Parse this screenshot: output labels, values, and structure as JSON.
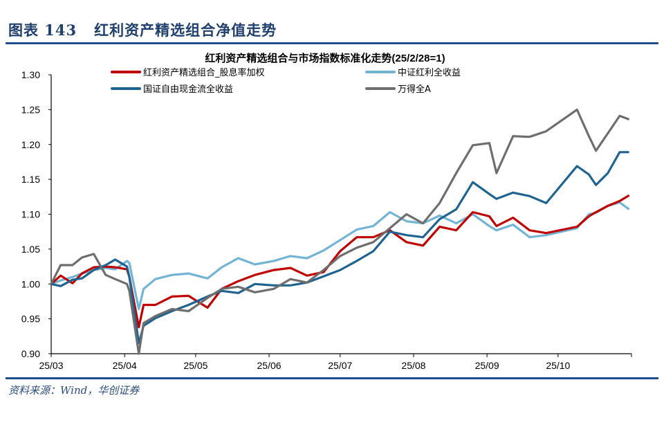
{
  "figure": {
    "title": "图表 143   红利资产精选组合净值走势",
    "source": "资料来源：Wind，华创证券"
  },
  "chart_data": {
    "type": "line",
    "title": "红利资产精选组合与市场指数标准化走势(25/2/28=1)",
    "xlabel": "",
    "ylabel": "",
    "xlim": [
      "2025-03-01",
      "2025-11-01"
    ],
    "ylim": [
      0.9,
      1.3
    ],
    "yticks": [
      "0.90",
      "0.95",
      "1.00",
      "1.05",
      "1.10",
      "1.15",
      "1.20",
      "1.25",
      "1.30"
    ],
    "xticks": [
      {
        "date": "2025-03-01",
        "label": "25/03"
      },
      {
        "date": "2025-04-01",
        "label": "25/04"
      },
      {
        "date": "2025-05-01",
        "label": "25/05"
      },
      {
        "date": "2025-06-01",
        "label": "25/06"
      },
      {
        "date": "2025-07-01",
        "label": "25/07"
      },
      {
        "date": "2025-08-01",
        "label": "25/08"
      },
      {
        "date": "2025-09-01",
        "label": "25/09"
      },
      {
        "date": "2025-10-01",
        "label": "25/10"
      },
      {
        "date": "2025-11-01",
        "label": ""
      }
    ],
    "grid": false,
    "legend_position": "top",
    "x": [
      "2025-03-01",
      "2025-03-05",
      "2025-03-10",
      "2025-03-14",
      "2025-03-19",
      "2025-03-24",
      "2025-03-28",
      "2025-04-02",
      "2025-04-03",
      "2025-04-07",
      "2025-04-09",
      "2025-04-14",
      "2025-04-21",
      "2025-04-28",
      "2025-05-06",
      "2025-05-12",
      "2025-05-19",
      "2025-05-26",
      "2025-06-03",
      "2025-06-10",
      "2025-06-17",
      "2025-06-24",
      "2025-07-01",
      "2025-07-08",
      "2025-07-15",
      "2025-07-22",
      "2025-07-29",
      "2025-08-05",
      "2025-08-12",
      "2025-08-19",
      "2025-08-26",
      "2025-09-02",
      "2025-09-05",
      "2025-09-12",
      "2025-09-19",
      "2025-09-26",
      "2025-10-09",
      "2025-10-14",
      "2025-10-17",
      "2025-10-22",
      "2025-10-27",
      "2025-10-31"
    ],
    "series": [
      {
        "name": "红利资产精选组合_股息率加权",
        "color": "#C00000",
        "values": [
          1.0,
          1.012,
          1.001,
          1.015,
          1.024,
          1.025,
          1.024,
          1.021,
          1.01,
          0.938,
          0.97,
          0.97,
          0.982,
          0.983,
          0.966,
          0.993,
          1.004,
          1.013,
          1.02,
          1.023,
          1.012,
          1.017,
          1.047,
          1.067,
          1.067,
          1.077,
          1.06,
          1.055,
          1.082,
          1.077,
          1.103,
          1.097,
          1.083,
          1.095,
          1.077,
          1.073,
          1.082,
          1.097,
          1.103,
          1.112,
          1.119,
          1.127
        ]
      },
      {
        "name": "中证红利全收益",
        "color": "#72B4D4",
        "values": [
          1.0,
          1.005,
          1.01,
          1.015,
          1.02,
          1.023,
          1.021,
          1.033,
          1.03,
          0.964,
          0.993,
          1.007,
          1.013,
          1.015,
          1.008,
          1.024,
          1.037,
          1.028,
          1.033,
          1.04,
          1.037,
          1.048,
          1.063,
          1.078,
          1.083,
          1.103,
          1.09,
          1.087,
          1.098,
          1.087,
          1.1,
          1.083,
          1.077,
          1.085,
          1.067,
          1.07,
          1.08,
          1.1,
          1.102,
          1.112,
          1.117,
          1.107
        ]
      },
      {
        "name": "国证自由现金流全收益",
        "color": "#1F6391",
        "values": [
          1.0,
          0.997,
          1.006,
          1.008,
          1.02,
          1.027,
          1.035,
          1.025,
          1.01,
          0.915,
          0.94,
          0.951,
          0.961,
          0.97,
          0.982,
          0.99,
          0.987,
          1.0,
          0.998,
          0.998,
          1.002,
          1.011,
          1.02,
          1.033,
          1.047,
          1.075,
          1.07,
          1.067,
          1.093,
          1.107,
          1.146,
          1.129,
          1.122,
          1.131,
          1.126,
          1.116,
          1.169,
          1.157,
          1.142,
          1.159,
          1.189,
          1.189
        ]
      },
      {
        "name": "万得全A",
        "color": "#6E6E6E",
        "values": [
          1.0,
          1.027,
          1.027,
          1.038,
          1.043,
          1.013,
          1.007,
          1.0,
          0.99,
          0.9,
          0.944,
          0.954,
          0.964,
          0.961,
          0.98,
          0.993,
          0.996,
          0.988,
          0.993,
          1.007,
          1.002,
          1.02,
          1.04,
          1.052,
          1.06,
          1.08,
          1.1,
          1.087,
          1.116,
          1.159,
          1.199,
          1.202,
          1.159,
          1.212,
          1.211,
          1.219,
          1.25,
          1.212,
          1.191,
          1.216,
          1.241,
          1.236
        ]
      }
    ]
  }
}
